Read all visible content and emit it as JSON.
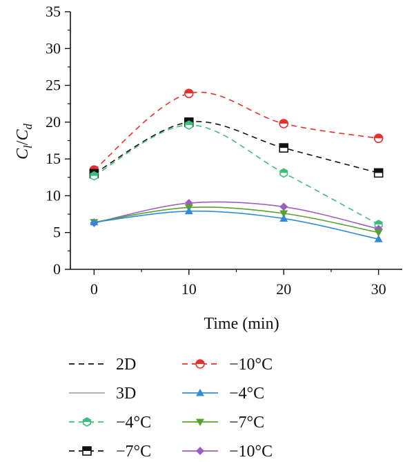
{
  "chart_data": {
    "type": "line",
    "xlabel": "Time (min)",
    "ylabel": {
      "base": "C",
      "num_sub": "l",
      "sep": "/",
      "den_base": "C",
      "den_sub": "d"
    },
    "xlim": [
      -2.5,
      32.5
    ],
    "ylim": [
      0,
      35
    ],
    "xticks": [
      0,
      10,
      20,
      30
    ],
    "yticks": [
      0,
      5,
      10,
      15,
      20,
      25,
      30,
      35
    ],
    "grid": false,
    "legend_position": "bottom",
    "series": [
      {
        "name": "−10°C",
        "group": "2D",
        "color": "#e8302b",
        "dash": "8,6",
        "marker": "circle-half-top",
        "x": [
          0,
          10,
          20,
          30
        ],
        "y": [
          13.5,
          23.9,
          19.8,
          17.8
        ]
      },
      {
        "name": "−7°C",
        "group": "2D",
        "color": "#111111",
        "dash": "8,6",
        "marker": "square-half-top",
        "x": [
          0,
          10,
          20,
          30
        ],
        "y": [
          13.0,
          20.0,
          16.5,
          13.1
        ]
      },
      {
        "name": "−4°C",
        "group": "2D",
        "color": "#3cbf7a",
        "dash": "8,6",
        "marker": "hexagon-half-top",
        "x": [
          0,
          10,
          20,
          30
        ],
        "y": [
          12.7,
          19.6,
          13.1,
          6.1
        ]
      },
      {
        "name": "−10°C",
        "group": "3D",
        "color": "#9b5fc0",
        "dash": "",
        "marker": "diamond",
        "x": [
          0,
          10,
          20,
          30
        ],
        "y": [
          6.3,
          9.0,
          8.5,
          5.5
        ]
      },
      {
        "name": "−7°C",
        "group": "3D",
        "color": "#5aa02c",
        "dash": "",
        "marker": "triangle-down",
        "x": [
          0,
          10,
          20,
          30
        ],
        "y": [
          6.4,
          8.4,
          7.6,
          5.0
        ]
      },
      {
        "name": "−4°C",
        "group": "3D",
        "color": "#2e8bd9",
        "dash": "",
        "marker": "triangle-up",
        "x": [
          0,
          10,
          20,
          30
        ],
        "y": [
          6.4,
          7.9,
          6.9,
          4.1
        ]
      }
    ]
  },
  "legend": {
    "items": [
      {
        "label": "2D",
        "color": "#111111",
        "dash": "8,6",
        "marker": "none"
      },
      {
        "label": "3D",
        "color": "#a6a6a6",
        "dash": "",
        "marker": "none"
      },
      {
        "label": "−4°C",
        "color": "#3cbf7a",
        "dash": "8,6",
        "marker": "hexagon-half-top"
      },
      {
        "label": "−7°C",
        "color": "#111111",
        "dash": "8,6",
        "marker": "square-half-top"
      },
      {
        "label": "−10°C",
        "color": "#e8302b",
        "dash": "8,6",
        "marker": "circle-half-top"
      },
      {
        "label": "−4°C",
        "color": "#2e8bd9",
        "dash": "",
        "marker": "triangle-up"
      },
      {
        "label": "−7°C",
        "color": "#5aa02c",
        "dash": "",
        "marker": "triangle-down"
      },
      {
        "label": "−10°C",
        "color": "#9b5fc0",
        "dash": "",
        "marker": "diamond"
      }
    ]
  }
}
